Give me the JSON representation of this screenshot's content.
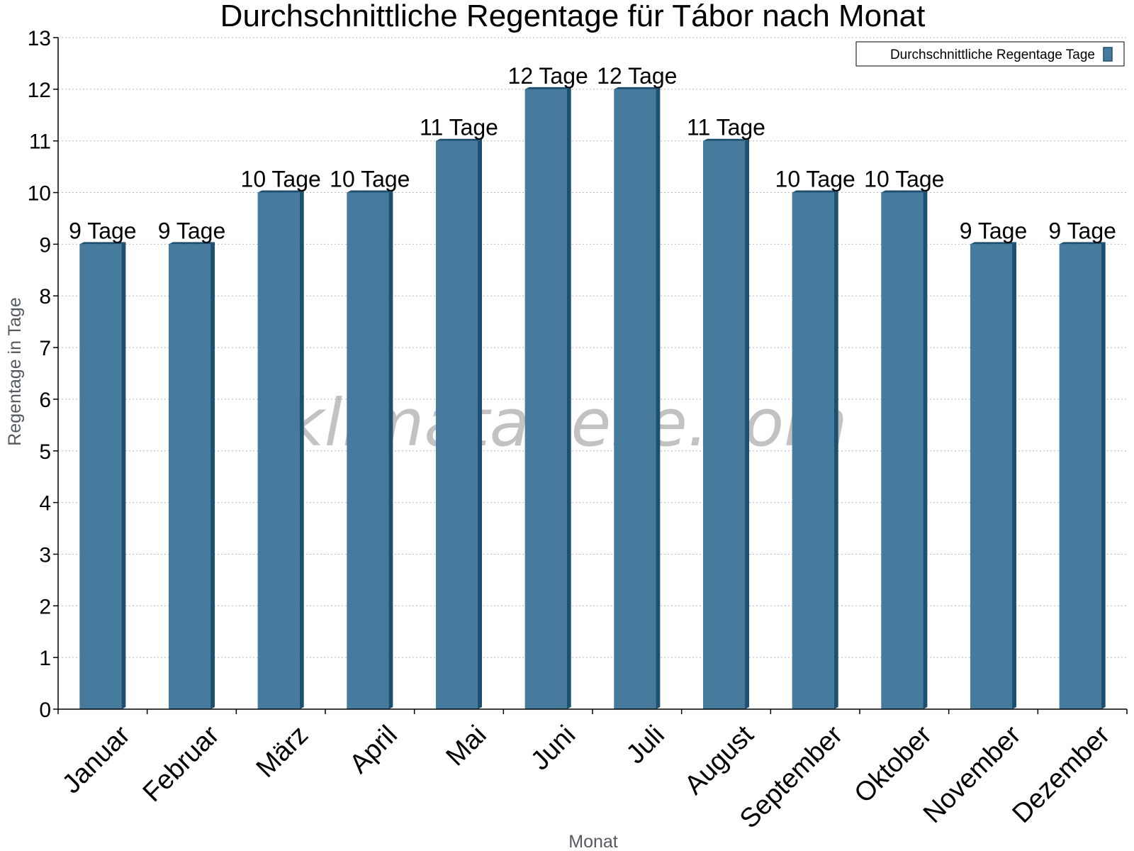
{
  "chart_data": {
    "type": "bar",
    "title": "Durchschnittliche Regentage für Tábor nach Monat",
    "xlabel": "Monat",
    "ylabel": "Regentage in Tage",
    "ylim": [
      0,
      13
    ],
    "yticks": [
      "0",
      "1",
      "2",
      "3",
      "4",
      "5",
      "6",
      "7",
      "8",
      "9",
      "10",
      "11",
      "12",
      "13"
    ],
    "grid": true,
    "legend_position": "top-right",
    "categories": [
      "Januar",
      "Februar",
      "März",
      "April",
      "Mai",
      "Juni",
      "Juli",
      "August",
      "September",
      "Oktober",
      "November",
      "Dezember"
    ],
    "series": [
      {
        "name": "Durchschnittliche Regentage Tage",
        "values": [
          9,
          9,
          10,
          10,
          11,
          12,
          12,
          11,
          10,
          10,
          9,
          9
        ],
        "data_labels": [
          "9 Tage",
          "9 Tage",
          "10 Tage",
          "10 Tage",
          "11 Tage",
          "12 Tage",
          "12 Tage",
          "11 Tage",
          "10 Tage",
          "10 Tage",
          "9 Tage",
          "9 Tage"
        ],
        "color": "#467b9e",
        "side_color": "#1d4f70"
      }
    ],
    "watermark": "klimatabelle.com"
  }
}
